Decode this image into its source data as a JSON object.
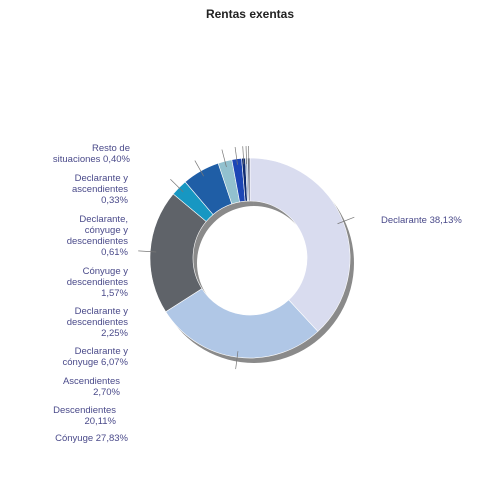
{
  "chart_data": {
    "type": "pie",
    "title": "Rentas exentas",
    "series": [
      {
        "label": "Declarante 38,13%",
        "value": 38.13,
        "color": "#d9dcef"
      },
      {
        "label": "Cónyuge 27,83%",
        "value": 27.83,
        "color": "#b0c7e6"
      },
      {
        "label": "Descendientes\n20,11%",
        "value": 20.11,
        "color": "#5f6369"
      },
      {
        "label": "Ascendientes\n2,70%",
        "value": 2.7,
        "color": "#1797c2"
      },
      {
        "label": "Declarante y\ncónyuge 6,07%",
        "value": 6.07,
        "color": "#1f5ea6"
      },
      {
        "label": "Declarante y\ndescendientes\n2,25%",
        "value": 2.25,
        "color": "#92c1cf"
      },
      {
        "label": "Cónyuge y\ndescendientes\n1,57%",
        "value": 1.57,
        "color": "#1c46b5"
      },
      {
        "label": "Declarante,\ncónyuge y\ndescendientes\n0,61%",
        "value": 0.61,
        "color": "#0f2c72"
      },
      {
        "label": "Declarante y\nascendientes\n0,33%",
        "value": 0.33,
        "color": "#9bb0cc"
      },
      {
        "label": "Resto de\nsituaciones 0,40%",
        "value": 0.4,
        "color": "#6e7488"
      }
    ]
  }
}
